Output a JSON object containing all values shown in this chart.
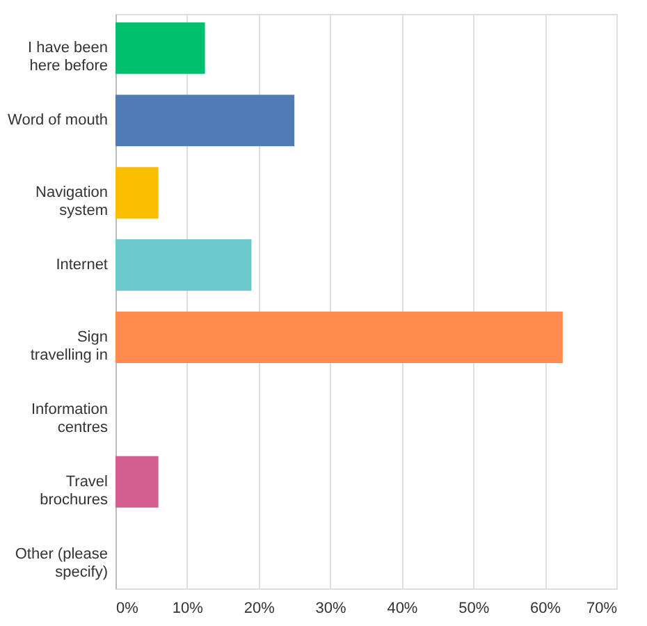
{
  "chart_data": {
    "type": "bar",
    "orientation": "horizontal",
    "categories": [
      "I have been here before",
      "Word of mouth",
      "Navigation system",
      "Internet",
      "Sign travelling in",
      "Information centres",
      "Travel brochures",
      "Other (please specify)"
    ],
    "values": [
      12.5,
      25,
      6,
      19,
      62.5,
      0,
      6,
      0
    ],
    "colors": [
      "#00bf6f",
      "#507cb6",
      "#f9be00",
      "#6bc8cd",
      "#ff8b4f",
      "#7d3c8c",
      "#d25f90",
      "#a3a3a3"
    ],
    "xlim": [
      0,
      70
    ],
    "xticks": [
      {
        "value": 0,
        "label": "0%"
      },
      {
        "value": 10,
        "label": "10%"
      },
      {
        "value": 20,
        "label": "20%"
      },
      {
        "value": 30,
        "label": "30%"
      },
      {
        "value": 40,
        "label": "40%"
      },
      {
        "value": 50,
        "label": "50%"
      },
      {
        "value": 60,
        "label": "60%"
      },
      {
        "value": 70,
        "label": "70%"
      }
    ],
    "grid": "x"
  }
}
